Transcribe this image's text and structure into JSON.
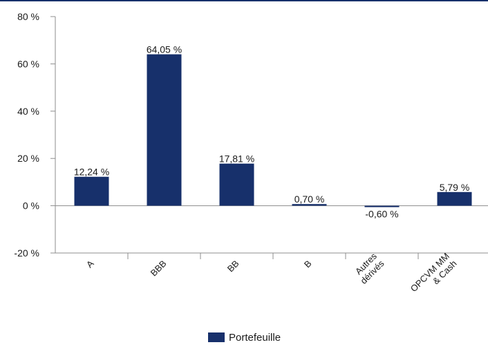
{
  "chart_data": {
    "type": "bar",
    "categories": [
      "A",
      "BBB",
      "BB",
      "B",
      "Autres dérivés",
      "OPCVM MM & Cash"
    ],
    "category_lines": [
      [
        "A"
      ],
      [
        "BBB"
      ],
      [
        "BB"
      ],
      [
        "B"
      ],
      [
        "Autres",
        "dérivés"
      ],
      [
        "OPCVM MM",
        "& Cash"
      ]
    ],
    "series": [
      {
        "name": "Portefeuille",
        "values": [
          12.24,
          64.05,
          17.81,
          0.7,
          -0.6,
          5.79
        ],
        "value_labels": [
          "12,24 %",
          "64,05 %",
          "17,81 %",
          "0,70 %",
          "-0,60 %",
          "5,79 %"
        ],
        "color": "#17306b"
      }
    ],
    "ylim": [
      -20,
      80
    ],
    "yticks": [
      80,
      60,
      40,
      20,
      0,
      -20
    ],
    "ytick_labels": [
      "80 %",
      "60 %",
      "40 %",
      "20 %",
      "0 %",
      "-20 %"
    ],
    "title": "",
    "xlabel": "",
    "ylabel": "",
    "grid": false,
    "legend_position": "bottom-center"
  },
  "legend": {
    "label": "Portefeuille"
  },
  "colors": {
    "bar": "#17306b",
    "axis": "#8c8c8c",
    "top_border": "#17306b"
  }
}
